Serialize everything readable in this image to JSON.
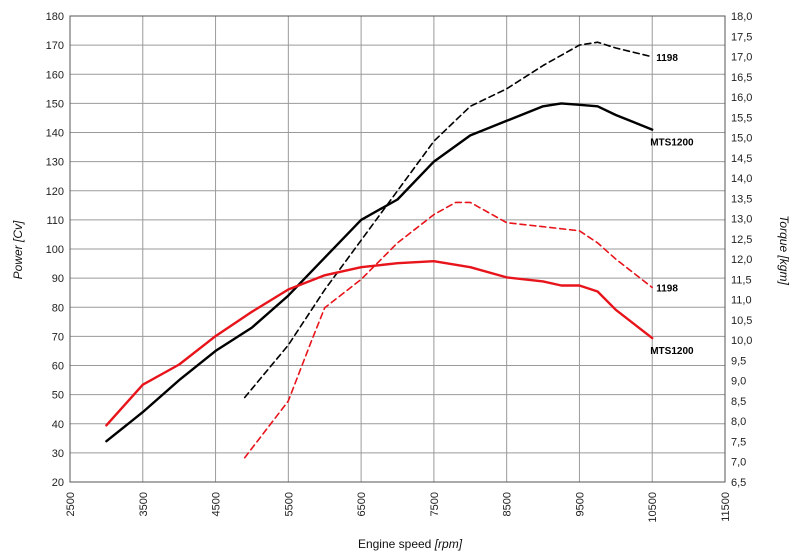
{
  "chart_data": {
    "type": "line",
    "xlabel": {
      "main": "Engine speed",
      "unit": "[rpm]"
    },
    "ylabel_left": {
      "main": "Power",
      "unit": "[Cv]"
    },
    "ylabel_right": {
      "main": "Torque",
      "unit": "[kgm]"
    },
    "xlim": [
      2500,
      11500
    ],
    "ylim_left": [
      20,
      180
    ],
    "ylim_right": [
      6.5,
      18.0
    ],
    "x_ticks": [
      "2500",
      "3500",
      "4500",
      "5500",
      "6500",
      "7500",
      "8500",
      "9500",
      "10500",
      "11500"
    ],
    "y_left_ticks": [
      "20",
      "30",
      "40",
      "50",
      "60",
      "70",
      "80",
      "90",
      "100",
      "110",
      "120",
      "130",
      "140",
      "150",
      "160",
      "170",
      "180"
    ],
    "y_right_ticks": [
      "6,5",
      "7,0",
      "7,5",
      "8,0",
      "8,5",
      "9,0",
      "9,5",
      "10,0",
      "10,5",
      "11,0",
      "11,5",
      "12,0",
      "12,5",
      "13,0",
      "13,5",
      "14,0",
      "14,5",
      "15,0",
      "15,5",
      "16,0",
      "16,5",
      "17,0",
      "17,5",
      "18,0"
    ],
    "grid": true,
    "colors": {
      "mts1200": "#000000",
      "s1198": "#e8141b"
    },
    "series": [
      {
        "name": "MTS1200",
        "quantity": "power",
        "axis": "left",
        "color": "#000000",
        "style": "solid",
        "x": [
          3000,
          3500,
          4000,
          4500,
          5000,
          5500,
          6000,
          6500,
          7000,
          7500,
          8000,
          8500,
          9000,
          9250,
          9500,
          9750,
          10000,
          10500
        ],
        "y": [
          34,
          44,
          55,
          65,
          73,
          84,
          97,
          110,
          117,
          130,
          139,
          144,
          149,
          150,
          149.5,
          149,
          146,
          141
        ]
      },
      {
        "name": "1198",
        "quantity": "power",
        "axis": "left",
        "color": "#000000",
        "style": "dashed",
        "x": [
          4900,
          5500,
          6000,
          6500,
          7000,
          7500,
          8000,
          8500,
          9000,
          9500,
          9750,
          10000,
          10500
        ],
        "y": [
          49,
          67,
          86,
          103,
          120,
          137,
          149,
          155,
          163,
          170,
          171,
          169,
          166
        ]
      },
      {
        "name": "MTS1200",
        "quantity": "torque",
        "axis": "right",
        "color": "#e8141b",
        "style": "solid",
        "x": [
          3000,
          3500,
          4000,
          4500,
          5000,
          5500,
          6000,
          6500,
          7000,
          7500,
          8000,
          8500,
          9000,
          9250,
          9500,
          9750,
          10000,
          10500
        ],
        "y": [
          7.9,
          8.9,
          9.4,
          10.1,
          10.7,
          11.25,
          11.6,
          11.8,
          11.9,
          11.95,
          11.8,
          11.55,
          11.45,
          11.35,
          11.35,
          11.2,
          10.75,
          10.05
        ]
      },
      {
        "name": "1198",
        "quantity": "torque",
        "axis": "right",
        "color": "#e8141b",
        "style": "dashed",
        "x": [
          4900,
          5500,
          5800,
          6000,
          6500,
          7000,
          7500,
          7800,
          8000,
          8500,
          9000,
          9500,
          9750,
          10000,
          10500
        ],
        "y": [
          7.1,
          8.5,
          9.9,
          10.8,
          11.5,
          12.4,
          13.1,
          13.4,
          13.4,
          12.9,
          12.8,
          12.7,
          12.4,
          12.0,
          11.3
        ]
      }
    ],
    "annotations": [
      {
        "text": "1198",
        "series_index": 1
      },
      {
        "text": "MTS1200",
        "series_index": 0
      },
      {
        "text": "1198",
        "series_index": 3
      },
      {
        "text": "MTS1200",
        "series_index": 2
      }
    ]
  }
}
